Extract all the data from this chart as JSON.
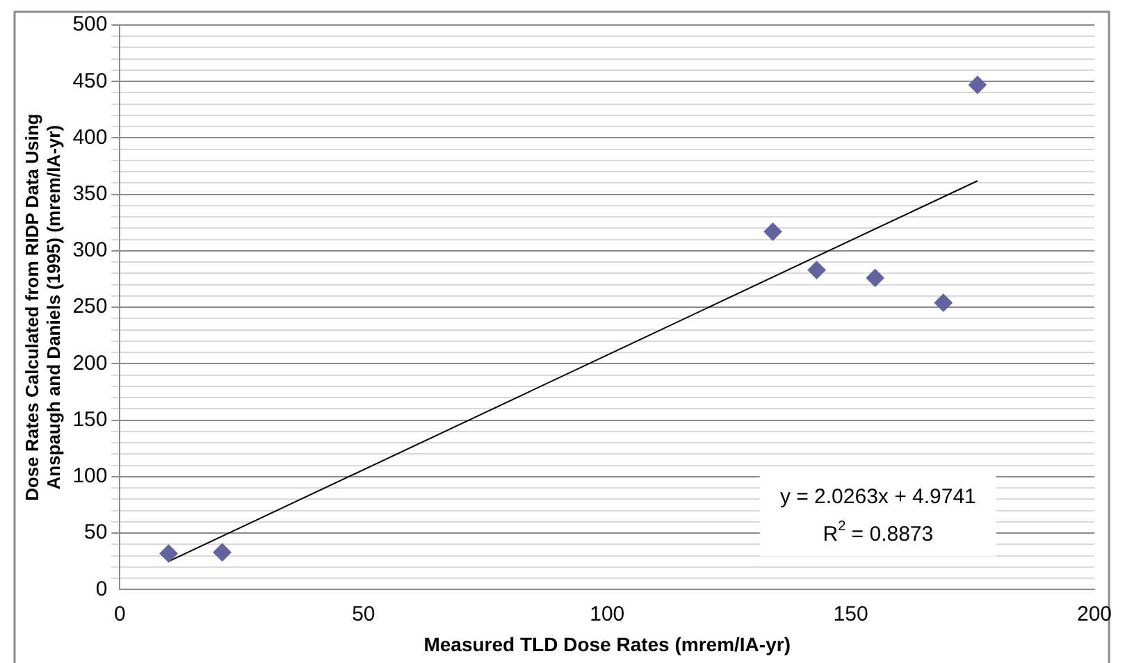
{
  "chart_data": {
    "type": "scatter",
    "xlabel": "Measured TLD Dose Rates (mrem/IA-yr)",
    "ylabel": "Dose Rates Calculated from RIDP Data Using Anspaugh and Daniels (1995) (mrem/IA-yr)",
    "xlim": [
      0,
      200
    ],
    "xticks": [
      0,
      50,
      100,
      150,
      200
    ],
    "ylim": [
      0,
      500
    ],
    "yticks": [
      0,
      {
        "value": 10,
        "label": null
      },
      {
        "value": 20,
        "label": null
      },
      {
        "value": 30,
        "label": null
      },
      {
        "value": 40,
        "label": null
      },
      50,
      {
        "value": 60,
        "label": null
      },
      {
        "value": 70,
        "label": null
      },
      {
        "value": 80,
        "label": null
      },
      {
        "value": 90,
        "label": null
      },
      100,
      {
        "value": 110,
        "label": null
      },
      {
        "value": 120,
        "label": null
      },
      {
        "value": 130,
        "label": null
      },
      {
        "value": 140,
        "label": null
      },
      150,
      {
        "value": 160,
        "label": null
      },
      {
        "value": 170,
        "label": null
      },
      {
        "value": 180,
        "label": null
      },
      {
        "value": 190,
        "label": null
      },
      200,
      {
        "value": 210,
        "label": null
      },
      {
        "value": 220,
        "label": null
      },
      {
        "value": 230,
        "label": null
      },
      {
        "value": 240,
        "label": null
      },
      250,
      {
        "value": 260,
        "label": null
      },
      {
        "value": 270,
        "label": null
      },
      {
        "value": 280,
        "label": null
      },
      {
        "value": 290,
        "label": null
      },
      300,
      {
        "value": 310,
        "label": null
      },
      {
        "value": 320,
        "label": null
      },
      {
        "value": 330,
        "label": null
      },
      {
        "value": 340,
        "label": null
      },
      350,
      {
        "value": 360,
        "label": null
      },
      {
        "value": 370,
        "label": null
      },
      {
        "value": 380,
        "label": null
      },
      {
        "value": 390,
        "label": null
      },
      400,
      {
        "value": 410,
        "label": null
      },
      {
        "value": 420,
        "label": null
      },
      {
        "value": 430,
        "label": null
      },
      {
        "value": 440,
        "label": null
      },
      450,
      {
        "value": 460,
        "label": null
      },
      {
        "value": 470,
        "label": null
      },
      {
        "value": 480,
        "label": null
      },
      {
        "value": 490,
        "label": null
      },
      500
    ],
    "series": [
      {
        "color": "#63639f",
        "marker": "diamond",
        "x": [
          10,
          21,
          134,
          143,
          155,
          169,
          176
        ],
        "values": [
          32,
          33,
          317,
          283,
          276,
          254,
          447
        ]
      },
      {
        "type": "line",
        "color": "#000000",
        "marker": "none",
        "x": [
          10,
          176
        ],
        "values": [
          25,
          362
        ]
      }
    ],
    "grid": "y",
    "legend": false,
    "annotations": [
      "y = 2.0263x + 4.9741",
      "R$^{2}$ = 0.8873"
    ]
  }
}
